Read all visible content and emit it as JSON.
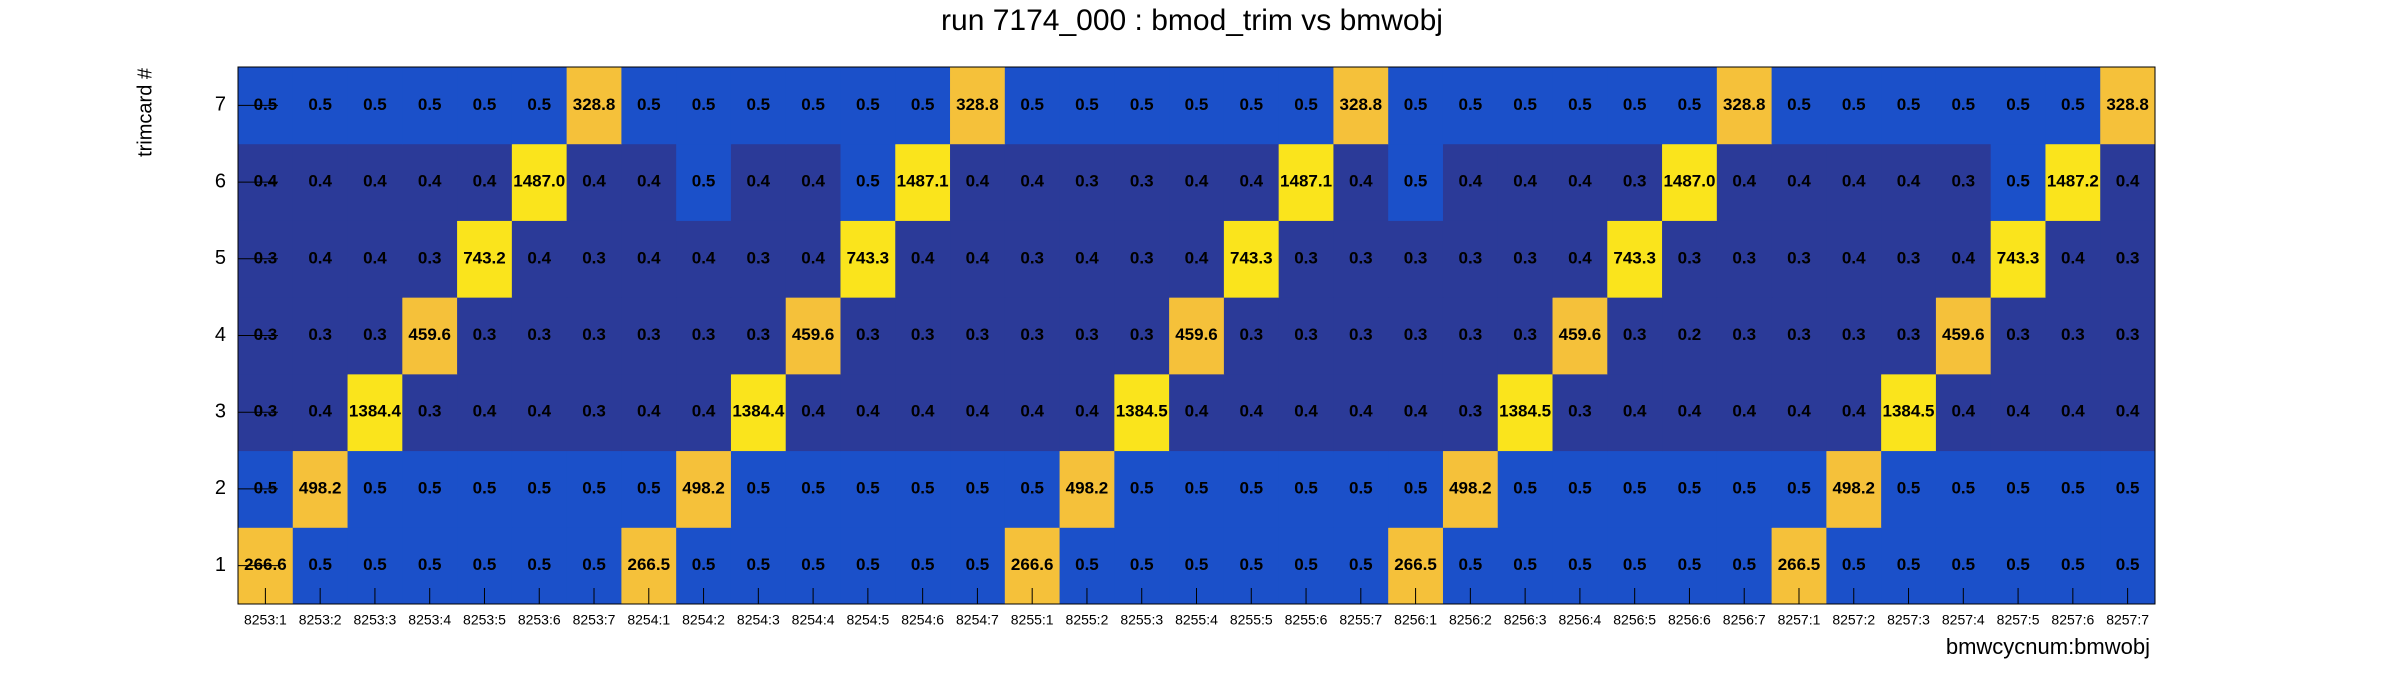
{
  "chart_data": {
    "type": "heatmap",
    "title": "run 7174_000 : bmod_trim vs bmwobj",
    "x_label": "bmwcycnum:bmwobj",
    "y_label": "trimcard #",
    "categories": [
      "8253:1",
      "8253:2",
      "8253:3",
      "8253:4",
      "8253:5",
      "8253:6",
      "8253:7",
      "8254:1",
      "8254:2",
      "8254:3",
      "8254:4",
      "8254:5",
      "8254:6",
      "8254:7",
      "8255:1",
      "8255:2",
      "8255:3",
      "8255:4",
      "8255:5",
      "8255:6",
      "8255:7",
      "8256:1",
      "8256:2",
      "8256:3",
      "8256:4",
      "8256:5",
      "8256:6",
      "8256:7",
      "8257:1",
      "8257:2",
      "8257:3",
      "8257:4",
      "8257:5",
      "8257:6",
      "8257:7"
    ],
    "y_categories": [
      1,
      2,
      3,
      4,
      5,
      6,
      7
    ],
    "values": [
      [
        266.6,
        0.5,
        0.5,
        0.5,
        0.5,
        0.5,
        0.5,
        266.5,
        0.5,
        0.5,
        0.5,
        0.5,
        0.5,
        0.5,
        266.6,
        0.5,
        0.5,
        0.5,
        0.5,
        0.5,
        0.5,
        266.5,
        0.5,
        0.5,
        0.5,
        0.5,
        0.5,
        0.5,
        266.5,
        0.5,
        0.5,
        0.5,
        0.5,
        0.5,
        0.5
      ],
      [
        0.5,
        498.2,
        0.5,
        0.5,
        0.5,
        0.5,
        0.5,
        0.5,
        498.2,
        0.5,
        0.5,
        0.5,
        0.5,
        0.5,
        0.5,
        498.2,
        0.5,
        0.5,
        0.5,
        0.5,
        0.5,
        0.5,
        498.2,
        0.5,
        0.5,
        0.5,
        0.5,
        0.5,
        0.5,
        498.2,
        0.5,
        0.5,
        0.5,
        0.5,
        0.5
      ],
      [
        0.3,
        0.4,
        1384.4,
        0.3,
        0.4,
        0.4,
        0.3,
        0.4,
        0.4,
        1384.4,
        0.4,
        0.4,
        0.4,
        0.4,
        0.4,
        0.4,
        1384.5,
        0.4,
        0.4,
        0.4,
        0.4,
        0.4,
        0.3,
        1384.5,
        0.3,
        0.4,
        0.4,
        0.4,
        0.4,
        0.4,
        1384.5,
        0.4,
        0.4,
        0.4,
        0.4
      ],
      [
        0.3,
        0.3,
        0.3,
        459.6,
        0.3,
        0.3,
        0.3,
        0.3,
        0.3,
        0.3,
        459.6,
        0.3,
        0.3,
        0.3,
        0.3,
        0.3,
        0.3,
        459.6,
        0.3,
        0.3,
        0.3,
        0.3,
        0.3,
        0.3,
        459.6,
        0.3,
        0.2,
        0.3,
        0.3,
        0.3,
        0.3,
        459.6,
        0.3,
        0.3,
        0.3
      ],
      [
        0.3,
        0.4,
        0.4,
        0.3,
        743.2,
        0.4,
        0.3,
        0.4,
        0.4,
        0.3,
        0.4,
        743.3,
        0.4,
        0.4,
        0.3,
        0.4,
        0.3,
        0.4,
        743.3,
        0.3,
        0.3,
        0.3,
        0.3,
        0.3,
        0.4,
        743.3,
        0.3,
        0.3,
        0.3,
        0.4,
        0.3,
        0.4,
        743.3,
        0.4,
        0.3
      ],
      [
        0.4,
        0.4,
        0.4,
        0.4,
        0.4,
        1487.0,
        0.4,
        0.4,
        0.5,
        0.4,
        0.4,
        0.5,
        1487.1,
        0.4,
        0.4,
        0.3,
        0.3,
        0.4,
        0.4,
        1487.1,
        0.4,
        0.5,
        0.4,
        0.4,
        0.4,
        0.3,
        1487.0,
        0.4,
        0.4,
        0.4,
        0.4,
        0.3,
        0.5,
        1487.2,
        0.4
      ],
      [
        0.5,
        0.5,
        0.5,
        0.5,
        0.5,
        0.5,
        328.8,
        0.5,
        0.5,
        0.5,
        0.5,
        0.5,
        0.5,
        328.8,
        0.5,
        0.5,
        0.5,
        0.5,
        0.5,
        0.5,
        328.8,
        0.5,
        0.5,
        0.5,
        0.5,
        0.5,
        0.5,
        328.8,
        0.5,
        0.5,
        0.5,
        0.5,
        0.5,
        0.5,
        328.8
      ]
    ],
    "value_labels": [
      [
        "266.6",
        "0.5",
        "0.5",
        "0.5",
        "0.5",
        "0.5",
        "0.5",
        "266.5",
        "0.5",
        "0.5",
        "0.5",
        "0.5",
        "0.5",
        "0.5",
        "266.6",
        "0.5",
        "0.5",
        "0.5",
        "0.5",
        "0.5",
        "0.5",
        "266.5",
        "0.5",
        "0.5",
        "0.5",
        "0.5",
        "0.5",
        "0.5",
        "266.5",
        "0.5",
        "0.5",
        "0.5",
        "0.5",
        "0.5",
        "0.5"
      ],
      [
        "0.5",
        "498.2",
        "0.5",
        "0.5",
        "0.5",
        "0.5",
        "0.5",
        "0.5",
        "498.2",
        "0.5",
        "0.5",
        "0.5",
        "0.5",
        "0.5",
        "0.5",
        "498.2",
        "0.5",
        "0.5",
        "0.5",
        "0.5",
        "0.5",
        "0.5",
        "498.2",
        "0.5",
        "0.5",
        "0.5",
        "0.5",
        "0.5",
        "0.5",
        "498.2",
        "0.5",
        "0.5",
        "0.5",
        "0.5",
        "0.5"
      ],
      [
        "0.3",
        "0.4",
        "1384.4",
        "0.3",
        "0.4",
        "0.4",
        "0.3",
        "0.4",
        "0.4",
        "1384.4",
        "0.4",
        "0.4",
        "0.4",
        "0.4",
        "0.4",
        "0.4",
        "1384.5",
        "0.4",
        "0.4",
        "0.4",
        "0.4",
        "0.4",
        "0.3",
        "1384.5",
        "0.3",
        "0.4",
        "0.4",
        "0.4",
        "0.4",
        "0.4",
        "1384.5",
        "0.4",
        "0.4",
        "0.4",
        "0.4"
      ],
      [
        "0.3",
        "0.3",
        "0.3",
        "459.6",
        "0.3",
        "0.3",
        "0.3",
        "0.3",
        "0.3",
        "0.3",
        "459.6",
        "0.3",
        "0.3",
        "0.3",
        "0.3",
        "0.3",
        "0.3",
        "459.6",
        "0.3",
        "0.3",
        "0.3",
        "0.3",
        "0.3",
        "0.3",
        "459.6",
        "0.3",
        "0.2",
        "0.3",
        "0.3",
        "0.3",
        "0.3",
        "459.6",
        "0.3",
        "0.3",
        "0.3"
      ],
      [
        "0.3",
        "0.4",
        "0.4",
        "0.3",
        "743.2",
        "0.4",
        "0.3",
        "0.4",
        "0.4",
        "0.3",
        "0.4",
        "743.3",
        "0.4",
        "0.4",
        "0.3",
        "0.4",
        "0.3",
        "0.4",
        "743.3",
        "0.3",
        "0.3",
        "0.3",
        "0.3",
        "0.3",
        "0.4",
        "743.3",
        "0.3",
        "0.3",
        "0.3",
        "0.4",
        "0.3",
        "0.4",
        "743.3",
        "0.4",
        "0.3"
      ],
      [
        "0.4",
        "0.4",
        "0.4",
        "0.4",
        "0.4",
        "1487.0",
        "0.4",
        "0.4",
        "0.5",
        "0.4",
        "0.4",
        "0.5",
        "1487.1",
        "0.4",
        "0.4",
        "0.3",
        "0.3",
        "0.4",
        "0.4",
        "1487.1",
        "0.4",
        "0.5",
        "0.4",
        "0.4",
        "0.4",
        "0.3",
        "1487.0",
        "0.4",
        "0.4",
        "0.4",
        "0.4",
        "0.3",
        "0.5",
        "1487.2",
        "0.4"
      ],
      [
        "0.5",
        "0.5",
        "0.5",
        "0.5",
        "0.5",
        "0.5",
        "328.8",
        "0.5",
        "0.5",
        "0.5",
        "0.5",
        "0.5",
        "0.5",
        "328.8",
        "0.5",
        "0.5",
        "0.5",
        "0.5",
        "0.5",
        "0.5",
        "328.8",
        "0.5",
        "0.5",
        "0.5",
        "0.5",
        "0.5",
        "0.5",
        "328.8",
        "0.5",
        "0.5",
        "0.5",
        "0.5",
        "0.5",
        "0.5",
        "328.8"
      ]
    ],
    "palette": [
      "#2b3a98",
      "#1b50c9",
      "#f5c13a",
      "#fae41c"
    ]
  }
}
